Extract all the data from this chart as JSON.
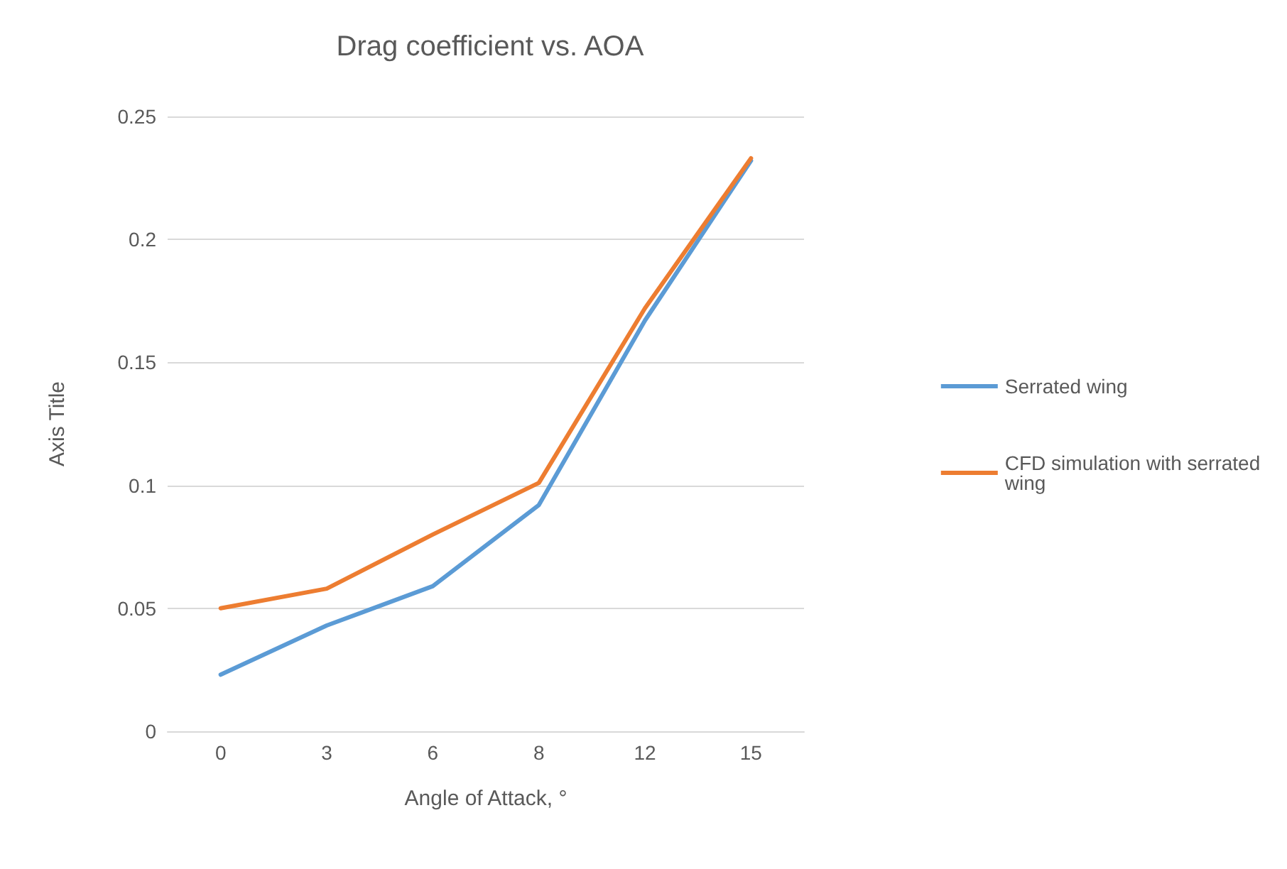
{
  "chart_data": {
    "type": "line",
    "title": "Drag coefficient vs. AOA",
    "xlabel": "Angle of Attack, °",
    "ylabel": "Axis Title",
    "categories": [
      "0",
      "3",
      "6",
      "8",
      "12",
      "15"
    ],
    "series": [
      {
        "name": "Serrated wing",
        "color": "#5b9bd5",
        "values": [
          0.023,
          0.043,
          0.059,
          0.092,
          0.167,
          0.232
        ]
      },
      {
        "name": "CFD simulation with serrated wing",
        "color": "#ed7d31",
        "values": [
          0.05,
          0.058,
          0.08,
          0.101,
          0.172,
          0.233
        ]
      }
    ],
    "ylim": [
      0,
      0.25
    ],
    "yticks": [
      0,
      0.05,
      0.1,
      0.15,
      0.2,
      0.25
    ],
    "grid": "y",
    "legend": "right",
    "marker": "none",
    "line_style": "solid"
  }
}
